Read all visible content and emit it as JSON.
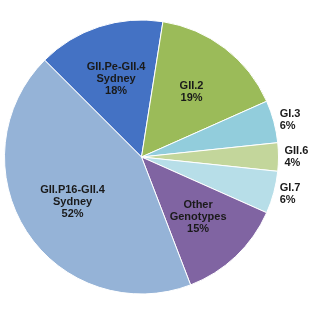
{
  "chart_data": {
    "type": "pie",
    "categories": [
      "GII.Pe-GII.4 Sydney",
      "GII.2",
      "GI.3",
      "GII.6",
      "GI.7",
      "Other Genotypes",
      "GII.P16-GII.4 Sydney"
    ],
    "values": [
      18,
      19,
      6,
      4,
      6,
      15,
      52
    ],
    "value_labels": [
      "18%",
      "19%",
      "6%",
      "4%",
      "6%",
      "15%",
      "52%"
    ],
    "colors": [
      "#4472c4",
      "#9bbb59",
      "#92cddc",
      "#c3d69b",
      "#b7dee8",
      "#8064a2",
      "#95b3d7"
    ],
    "data_labels": true
  }
}
